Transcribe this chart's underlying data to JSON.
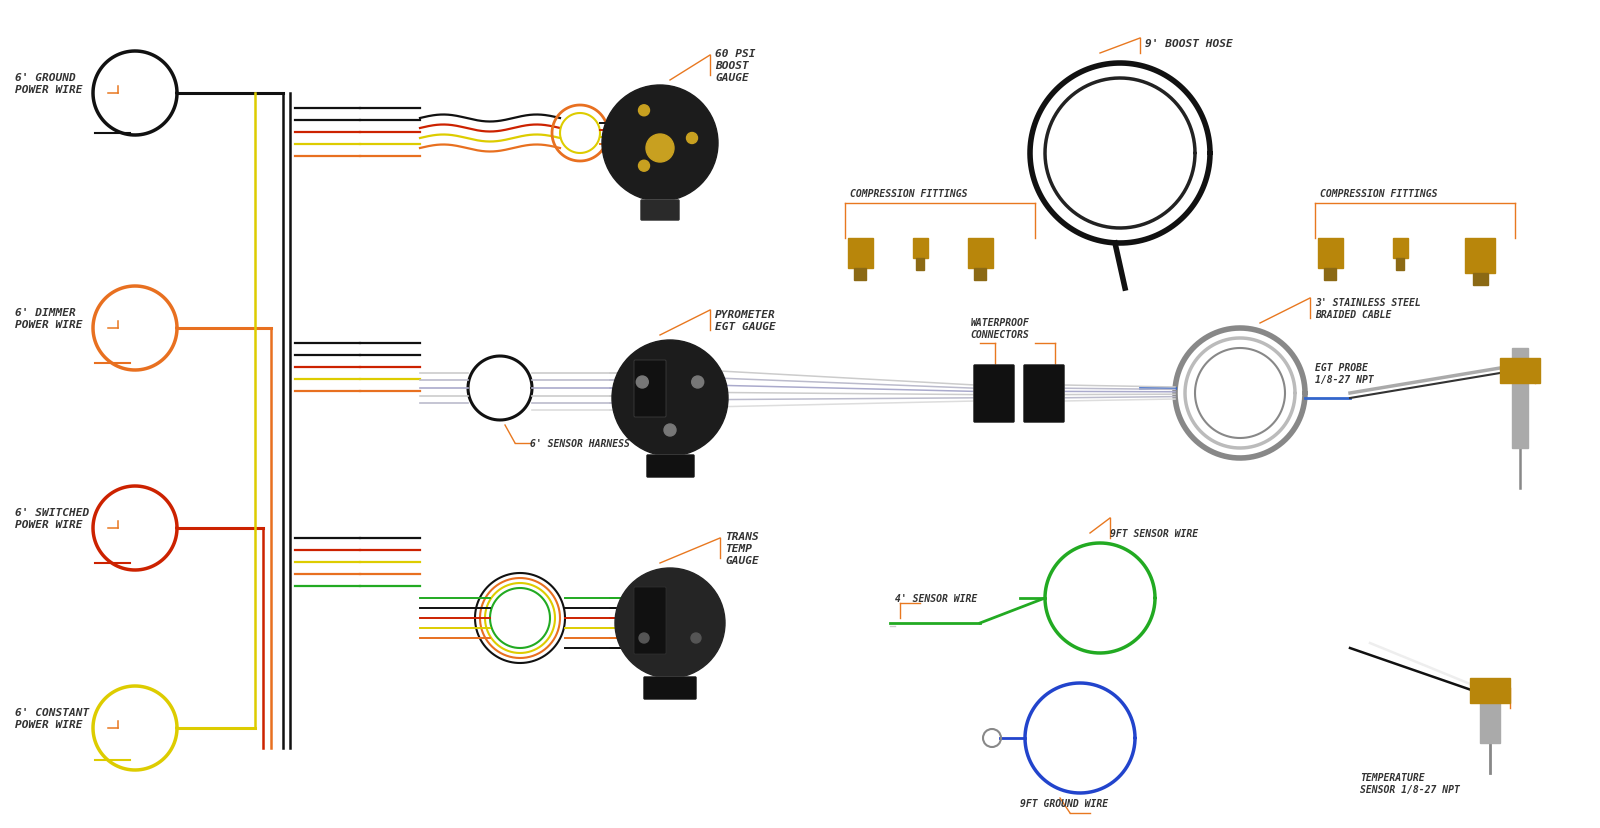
{
  "bg_color": "#ffffff",
  "wire_colors": {
    "black": "#111111",
    "red": "#cc2200",
    "orange": "#e87020",
    "yellow": "#ddcc00",
    "green": "#22aa22",
    "blue": "#2244cc",
    "white": "#dddddd",
    "gray": "#888888",
    "ltgray": "#cccccc",
    "brown": "#8B4513",
    "gold": "#b8860b"
  },
  "label_color": "#333333",
  "accent_color": "#e87820",
  "label_font": 7.0,
  "title_font": 8.0,
  "labels": {
    "ground_wire": "6' GROUND\nPOWER WIRE",
    "dimmer_wire": "6' DIMMER\nPOWER WIRE",
    "switched_wire": "6' SWITCHED\nPOWER WIRE",
    "constant_wire": "6' CONSTANT\nPOWER WIRE",
    "boost_gauge": "60 PSI\nBOOST\nGAUGE",
    "pyrometer": "PYROMETER\nEGT GAUGE",
    "trans_temp": "TRANS\nTEMP\nGAUGE",
    "boost_hose": "9' BOOST HOSE",
    "compression1": "COMPRESSION FITTINGS",
    "compression2": "COMPRESSION FITTINGS",
    "sensor_harness": "6' SENSOR HARNESS",
    "waterproof": "WATERPROOF\nCONNECTORS",
    "braided_cable": "3' STAINLESS STEEL\nBRAIDED CABLE",
    "egt_probe": "EGT PROBE\n1/8-27 NPT",
    "sensor_wire_4": "4' SENSOR WIRE",
    "sensor_wire_9": "9FT SENSOR WIRE",
    "ground_wire_9": "9FT GROUND WIRE",
    "temp_sensor": "TEMPERATURE\nSENSOR 1/8-27 NPT"
  }
}
